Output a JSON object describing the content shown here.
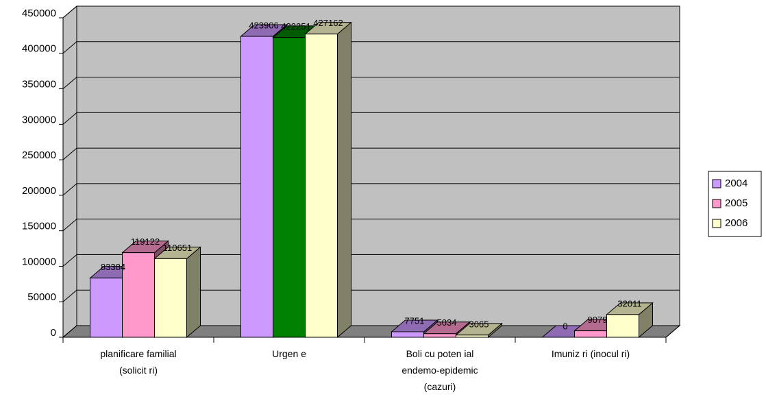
{
  "chart_data": {
    "type": "bar3d",
    "categories": [
      "planificare familial\n(solicit ri)",
      "Urgen e",
      "Boli cu poten ial\nendemo-epidemic\n(cazuri)",
      "Imuniz ri (inocul ri)"
    ],
    "series": [
      {
        "name": "2004",
        "color": "#cc99ff",
        "values": [
          83384,
          423906,
          7751,
          0
        ]
      },
      {
        "name": "2005",
        "color": "#ff99cc",
        "colors": [
          "#ff99cc",
          "#008000",
          "#ff99cc",
          "#ff99cc"
        ],
        "values": [
          119122,
          422251,
          5034,
          9079
        ]
      },
      {
        "name": "2006",
        "color": "#ffffcc",
        "values": [
          110651,
          427162,
          3065,
          32011
        ]
      }
    ],
    "ylim": [
      0,
      450000
    ],
    "yticks": [
      0,
      50000,
      100000,
      150000,
      200000,
      250000,
      300000,
      350000,
      400000,
      450000
    ],
    "grid": true,
    "legend": "right"
  }
}
